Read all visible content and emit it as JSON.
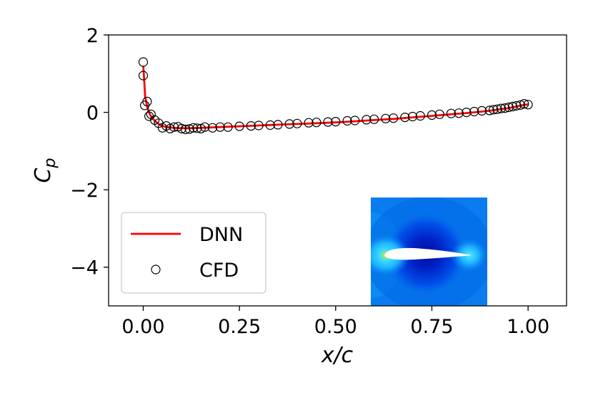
{
  "chart_data": {
    "type": "line",
    "xlabel_main": "x/c",
    "ylabel_main": "C",
    "ylabel_sub": "p",
    "xlim": [
      -0.09,
      1.1
    ],
    "ylim": [
      -5,
      2
    ],
    "xticks": [
      0.0,
      0.25,
      0.5,
      0.75,
      1.0
    ],
    "xtick_labels": [
      "0.00",
      "0.25",
      "0.50",
      "0.75",
      "1.00"
    ],
    "yticks": [
      2,
      0,
      -2,
      -4
    ],
    "ytick_labels": [
      "2",
      "0",
      "−2",
      "−4"
    ],
    "grid": false,
    "legend": {
      "location": "lower-left",
      "entries": [
        "DNN",
        "CFD"
      ]
    },
    "series": [
      {
        "name": "DNN",
        "style": "line",
        "color": "#ff0000",
        "x": [
          0.0,
          0.002,
          0.005,
          0.01,
          0.015,
          0.02,
          0.03,
          0.04,
          0.05,
          0.06,
          0.08,
          0.1,
          0.12,
          0.15,
          0.2,
          0.25,
          0.3,
          0.35,
          0.4,
          0.45,
          0.5,
          0.55,
          0.6,
          0.65,
          0.7,
          0.75,
          0.8,
          0.85,
          0.9,
          0.95,
          0.98,
          1.0
        ],
        "y": [
          1.2,
          0.9,
          0.4,
          0.15,
          0.0,
          -0.1,
          -0.22,
          -0.3,
          -0.35,
          -0.38,
          -0.4,
          -0.41,
          -0.41,
          -0.4,
          -0.38,
          -0.36,
          -0.34,
          -0.32,
          -0.3,
          -0.28,
          -0.26,
          -0.23,
          -0.2,
          -0.17,
          -0.13,
          -0.09,
          -0.05,
          -0.01,
          0.04,
          0.11,
          0.17,
          0.21
        ]
      },
      {
        "name": "CFD",
        "style": "marker",
        "color": "#000000",
        "x": [
          0.0,
          0.0,
          0.004,
          0.01,
          0.015,
          0.02,
          0.03,
          0.04,
          0.05,
          0.06,
          0.07,
          0.08,
          0.09,
          0.1,
          0.11,
          0.12,
          0.13,
          0.14,
          0.15,
          0.16,
          0.18,
          0.2,
          0.22,
          0.25,
          0.28,
          0.3,
          0.33,
          0.35,
          0.38,
          0.4,
          0.43,
          0.45,
          0.48,
          0.5,
          0.53,
          0.55,
          0.58,
          0.6,
          0.63,
          0.65,
          0.68,
          0.7,
          0.72,
          0.75,
          0.77,
          0.8,
          0.82,
          0.84,
          0.86,
          0.88,
          0.9,
          0.91,
          0.92,
          0.93,
          0.94,
          0.95,
          0.96,
          0.97,
          0.98,
          0.99,
          1.0
        ],
        "y": [
          1.3,
          0.95,
          0.18,
          0.28,
          -0.1,
          -0.05,
          -0.2,
          -0.28,
          -0.4,
          -0.35,
          -0.42,
          -0.38,
          -0.37,
          -0.42,
          -0.44,
          -0.43,
          -0.4,
          -0.41,
          -0.42,
          -0.38,
          -0.4,
          -0.38,
          -0.38,
          -0.36,
          -0.35,
          -0.34,
          -0.33,
          -0.32,
          -0.3,
          -0.29,
          -0.27,
          -0.26,
          -0.25,
          -0.24,
          -0.22,
          -0.21,
          -0.19,
          -0.18,
          -0.16,
          -0.15,
          -0.13,
          -0.11,
          -0.09,
          -0.07,
          -0.05,
          -0.03,
          -0.02,
          0.0,
          0.02,
          0.04,
          0.05,
          0.07,
          0.08,
          0.1,
          0.11,
          0.13,
          0.15,
          0.17,
          0.19,
          0.22,
          0.2
        ]
      }
    ],
    "inset": {
      "description_colors": {
        "background": "#0a7cf0",
        "dark": "#001bb8",
        "light": "#1ab3ff",
        "stagnation": "#e6e600",
        "airfoil": "#ffffff"
      }
    }
  }
}
